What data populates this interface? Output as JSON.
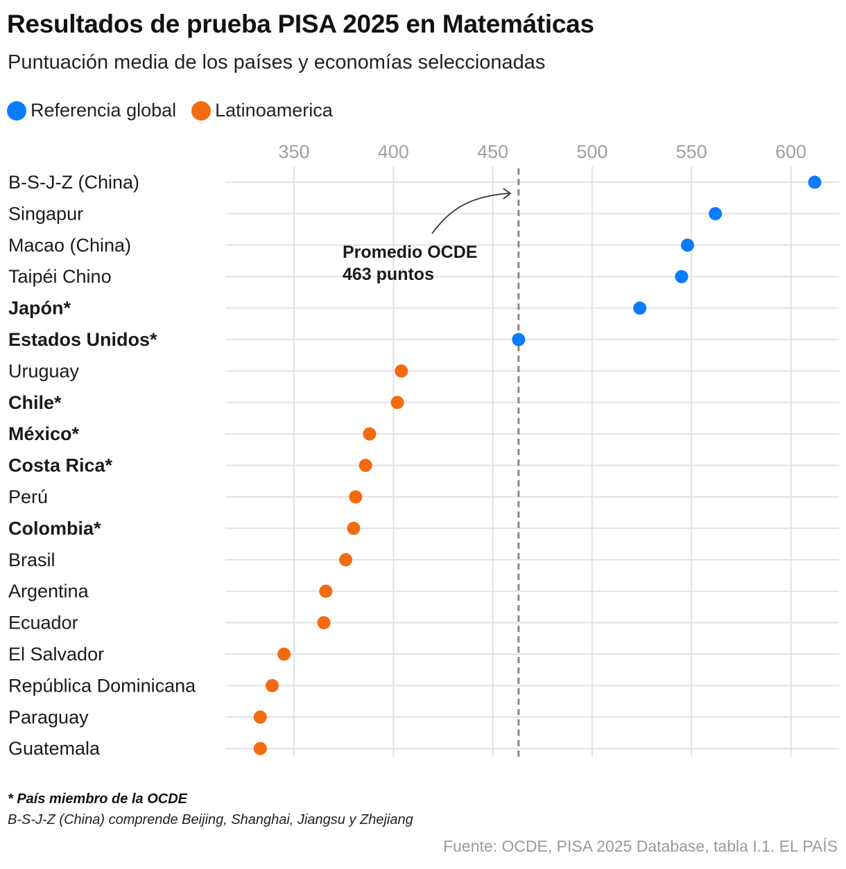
{
  "header": {
    "title": "Resultados de prueba PISA 2025 en Matemáticas",
    "subtitle": "Puntuación media de los países y economías seleccionadas"
  },
  "legend": [
    {
      "label": "Referencia global",
      "color": "#0a7cff"
    },
    {
      "label": "Latinoamerica",
      "color": "#f26b0f"
    }
  ],
  "chart_data": {
    "type": "scatter",
    "xlim": [
      315,
      625
    ],
    "x_ticks": [
      350,
      400,
      450,
      500,
      550,
      600
    ],
    "grid": true,
    "legend_position": "top-left",
    "reference_line": {
      "value": 463,
      "label_line1": "Promedio OCDE",
      "label_line2": "463 puntos"
    },
    "points": [
      {
        "country": "B-S-J-Z (China)",
        "value": 612,
        "group": "Referencia global",
        "ocde": false
      },
      {
        "country": "Singapur",
        "value": 562,
        "group": "Referencia global",
        "ocde": false
      },
      {
        "country": "Macao (China)",
        "value": 548,
        "group": "Referencia global",
        "ocde": false
      },
      {
        "country": "Taipéi Chino",
        "value": 545,
        "group": "Referencia global",
        "ocde": false
      },
      {
        "country": "Japón*",
        "value": 524,
        "group": "Referencia global",
        "ocde": true
      },
      {
        "country": "Estados Unidos*",
        "value": 463,
        "group": "Referencia global",
        "ocde": true
      },
      {
        "country": "Uruguay",
        "value": 404,
        "group": "Latinoamerica",
        "ocde": false
      },
      {
        "country": "Chile*",
        "value": 402,
        "group": "Latinoamerica",
        "ocde": true
      },
      {
        "country": "México*",
        "value": 388,
        "group": "Latinoamerica",
        "ocde": true
      },
      {
        "country": "Costa Rica*",
        "value": 386,
        "group": "Latinoamerica",
        "ocde": true
      },
      {
        "country": "Perú",
        "value": 381,
        "group": "Latinoamerica",
        "ocde": false
      },
      {
        "country": "Colombia*",
        "value": 380,
        "group": "Latinoamerica",
        "ocde": true
      },
      {
        "country": "Brasil",
        "value": 376,
        "group": "Latinoamerica",
        "ocde": false
      },
      {
        "country": "Argentina",
        "value": 366,
        "group": "Latinoamerica",
        "ocde": false
      },
      {
        "country": "Ecuador",
        "value": 365,
        "group": "Latinoamerica",
        "ocde": false
      },
      {
        "country": "El Salvador",
        "value": 345,
        "group": "Latinoamerica",
        "ocde": false
      },
      {
        "country": "República Dominicana",
        "value": 339,
        "group": "Latinoamerica",
        "ocde": false
      },
      {
        "country": "Paraguay",
        "value": 333,
        "group": "Latinoamerica",
        "ocde": false
      },
      {
        "country": "Guatemala",
        "value": 333,
        "group": "Latinoamerica",
        "ocde": false
      }
    ]
  },
  "footer": {
    "note_ocde": "* País miembro de la OCDE",
    "note_bsjz": "B-S-J-Z (China) comprende Beijing, Shanghai, Jiangsu y Zhejiang",
    "source": "Fuente: OCDE, PISA 2025 Database, tabla I.1. EL PAÍS"
  }
}
